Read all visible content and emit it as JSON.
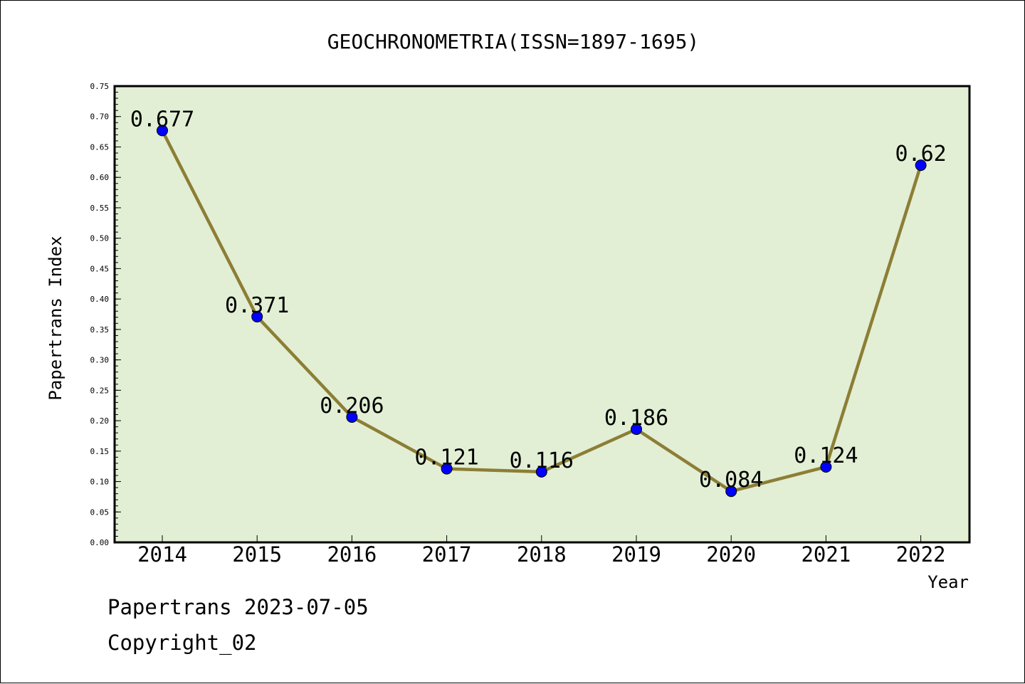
{
  "chart_data": {
    "type": "line",
    "title": "GEOCHRONOMETRIA(ISSN=1897-1695)",
    "xlabel": "Year",
    "ylabel": "Papertrans Index",
    "categories": [
      "2014",
      "2015",
      "2016",
      "2017",
      "2018",
      "2019",
      "2020",
      "2021",
      "2022"
    ],
    "values": [
      0.677,
      0.371,
      0.206,
      0.121,
      0.116,
      0.186,
      0.084,
      0.124,
      0.62
    ],
    "data_labels": [
      "0.677",
      "0.371",
      "0.206",
      "0.121",
      "0.116",
      "0.186",
      "0.084",
      "0.124",
      "0.62"
    ],
    "ylim": [
      0,
      0.75
    ],
    "yticks": [
      "0.00",
      "0.05",
      "0.10",
      "0.15",
      "0.20",
      "0.25",
      "0.30",
      "0.35",
      "0.40",
      "0.45",
      "0.50",
      "0.55",
      "0.60",
      "0.65",
      "0.70",
      "0.75"
    ],
    "grid": false,
    "legend": "none",
    "colors": {
      "plot_background": "#e2efd5",
      "line": "#8c7e35",
      "marker": "#0000ff"
    }
  },
  "footer": {
    "line1": "Papertrans 2023-07-05",
    "line2": "Copyright_02"
  }
}
